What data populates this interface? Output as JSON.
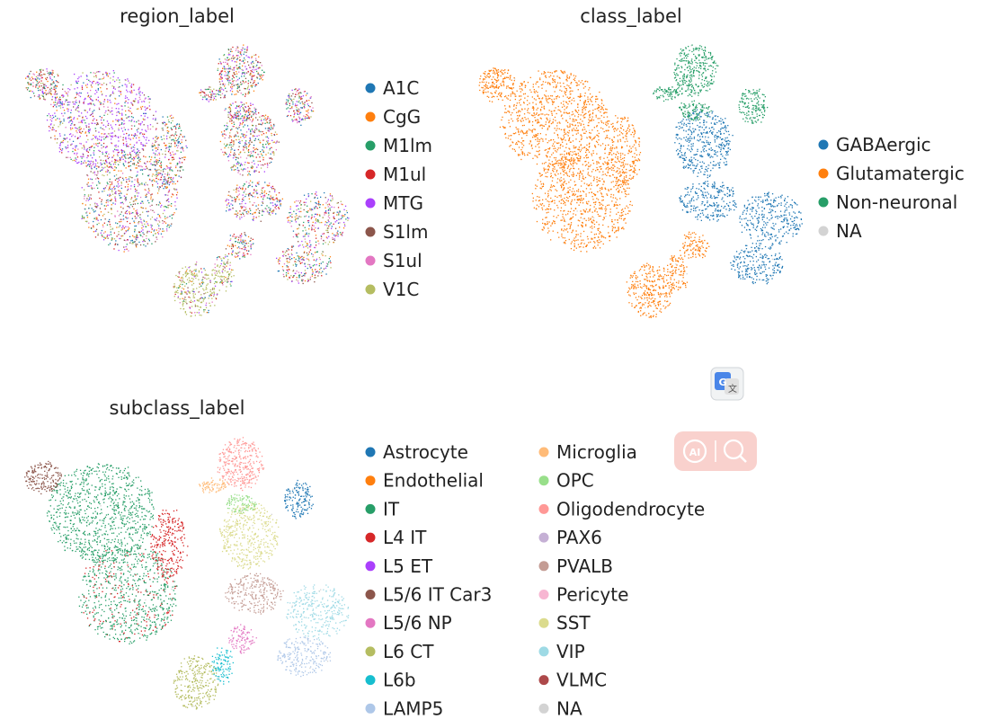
{
  "chart_data": [
    {
      "type": "scatter",
      "title": "region_label",
      "xlabel": "",
      "ylabel": "",
      "grid": false,
      "legend_placement": "right",
      "legend": [
        {
          "label": "A1C",
          "color": "#1f77b4"
        },
        {
          "label": "CgG",
          "color": "#ff7f0e"
        },
        {
          "label": "M1lm",
          "color": "#279e68"
        },
        {
          "label": "M1ul",
          "color": "#d62728"
        },
        {
          "label": "MTG",
          "color": "#aa40fc"
        },
        {
          "label": "S1lm",
          "color": "#8c564b"
        },
        {
          "label": "S1ul",
          "color": "#e377c2"
        },
        {
          "label": "V1C",
          "color": "#b5bd61"
        }
      ]
    },
    {
      "type": "scatter",
      "title": "class_label",
      "xlabel": "",
      "ylabel": "",
      "grid": false,
      "legend_placement": "right",
      "legend": [
        {
          "label": "GABAergic",
          "color": "#1f77b4"
        },
        {
          "label": "Glutamatergic",
          "color": "#ff7f0e"
        },
        {
          "label": "Non-neuronal",
          "color": "#279e68"
        },
        {
          "label": "NA",
          "color": "#d3d3d3"
        }
      ]
    },
    {
      "type": "scatter",
      "title": "subclass_label",
      "xlabel": "",
      "ylabel": "",
      "grid": false,
      "legend_placement": "right",
      "legend": [
        {
          "label": "Astrocyte",
          "color": "#1f77b4"
        },
        {
          "label": "Endothelial",
          "color": "#ff7f0e"
        },
        {
          "label": "IT",
          "color": "#279e68"
        },
        {
          "label": "L4 IT",
          "color": "#d62728"
        },
        {
          "label": "L5 ET",
          "color": "#aa40fc"
        },
        {
          "label": "L5/6 IT Car3",
          "color": "#8c564b"
        },
        {
          "label": "L5/6 NP",
          "color": "#e377c2"
        },
        {
          "label": "L6 CT",
          "color": "#b5bd61"
        },
        {
          "label": "L6b",
          "color": "#17becf"
        },
        {
          "label": "LAMP5",
          "color": "#aec7e8"
        },
        {
          "label": "Microglia",
          "color": "#ffbb78"
        },
        {
          "label": "OPC",
          "color": "#98df8a"
        },
        {
          "label": "Oligodendrocyte",
          "color": "#ff9896"
        },
        {
          "label": "PAX6",
          "color": "#c5b0d5"
        },
        {
          "label": "PVALB",
          "color": "#c49c94"
        },
        {
          "label": "Pericyte",
          "color": "#f7b6d2"
        },
        {
          "label": "SST",
          "color": "#dbdb8d"
        },
        {
          "label": "VIP",
          "color": "#9edae5"
        },
        {
          "label": "VLMC",
          "color": "#ad494a"
        },
        {
          "label": "NA",
          "color": "#d3d3d3"
        }
      ]
    }
  ],
  "overlay": {
    "translate_icon": "google-translate-icon",
    "ai_search_icon": "ai-search-icon",
    "translate_glyph": "G",
    "ai_glyph": "AI"
  }
}
